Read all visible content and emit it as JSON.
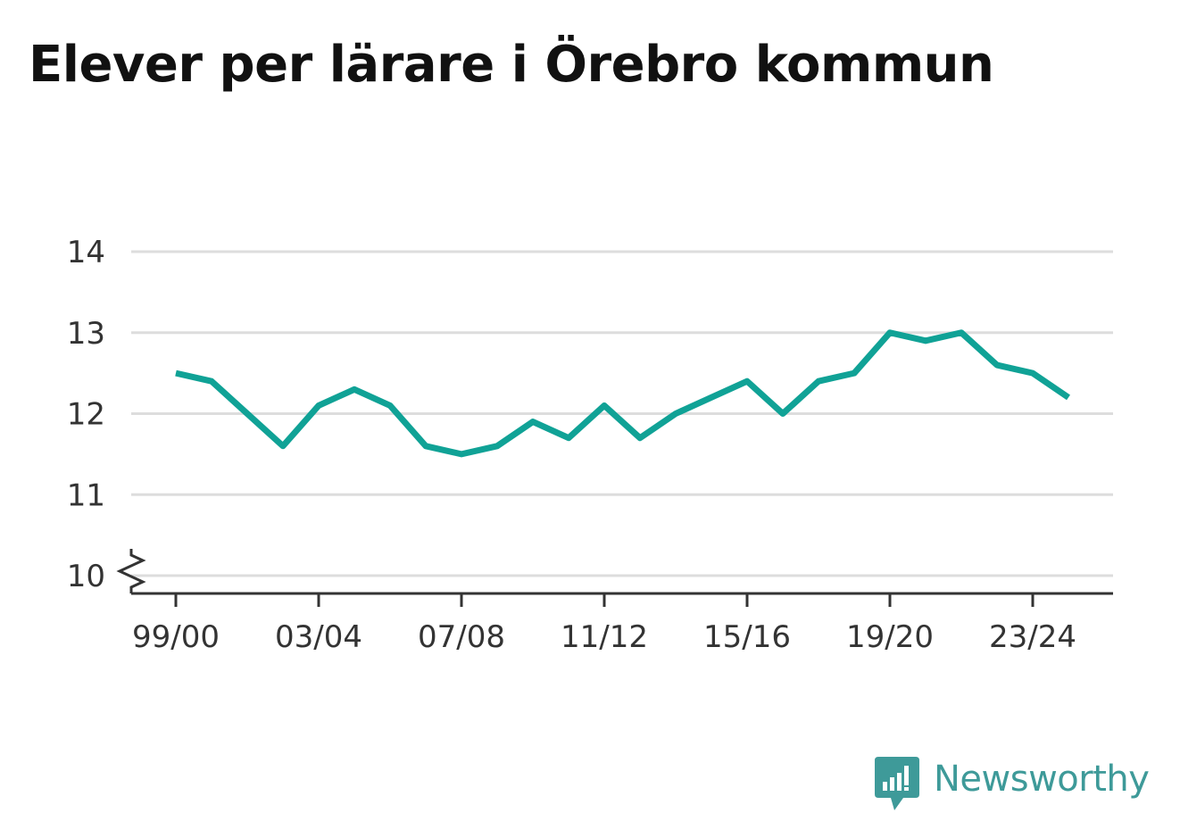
{
  "title": "Elever per lärare i Örebro kommun",
  "brand": {
    "name": "Newsworthy",
    "icon": "newsworthy-logo-icon",
    "color": "#3e9a99"
  },
  "colors": {
    "line": "#10a296",
    "grid": "#dddddd",
    "axis": "#333333"
  },
  "chart_data": {
    "type": "line",
    "title": "Elever per lärare i Örebro kommun",
    "xlabel": "",
    "ylabel": "",
    "x": [
      "99/00",
      "00/01",
      "01/02",
      "02/03",
      "03/04",
      "04/05",
      "05/06",
      "06/07",
      "07/08",
      "08/09",
      "09/10",
      "10/11",
      "11/12",
      "12/13",
      "13/14",
      "14/15",
      "15/16",
      "16/17",
      "17/18",
      "18/19",
      "19/20",
      "20/21",
      "21/22",
      "22/23",
      "23/24",
      "24/25"
    ],
    "xticks": [
      "99/00",
      "03/04",
      "07/08",
      "11/12",
      "15/16",
      "19/20",
      "23/24"
    ],
    "series": [
      {
        "values": [
          12.5,
          12.4,
          12.0,
          11.6,
          12.1,
          12.3,
          12.1,
          11.6,
          11.5,
          11.6,
          11.9,
          11.7,
          12.1,
          11.7,
          12.0,
          12.2,
          12.4,
          12.0,
          12.4,
          12.5,
          13.0,
          12.9,
          13.0,
          12.6,
          12.5,
          12.2
        ]
      }
    ],
    "yticks": [
      10,
      11,
      12,
      13,
      14
    ],
    "ylim": [
      10,
      14
    ],
    "axis_break": true,
    "grid": true,
    "legend": "none"
  }
}
